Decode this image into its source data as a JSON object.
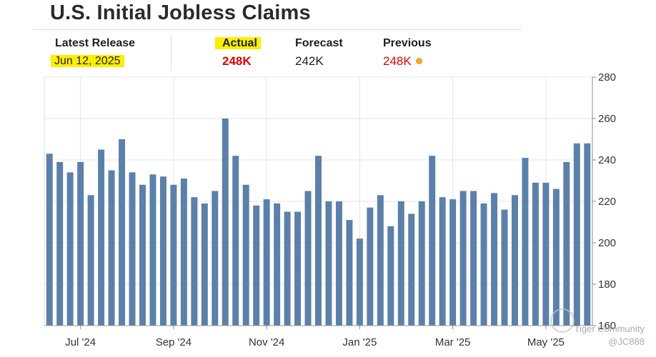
{
  "header": {
    "title": "U.S. Initial Jobless Claims",
    "latest_release_label": "Latest Release",
    "latest_release_date": "Jun 12, 2025",
    "actual_label": "Actual",
    "actual_value": "248K",
    "forecast_label": "Forecast",
    "forecast_value": "242K",
    "previous_label": "Previous",
    "previous_value": "248K"
  },
  "colors": {
    "bar": "#5b80aa",
    "actual": "#e00000",
    "highlight": "#ffee00",
    "dot": "#f5a623"
  },
  "watermark": {
    "line1": "Tiger Community",
    "line2": "@JC888"
  },
  "chart_data": {
    "type": "bar",
    "title": "U.S. Initial Jobless Claims",
    "xlabel": "",
    "ylabel": "",
    "ylim": [
      160,
      280
    ],
    "yticks": [
      160,
      180,
      200,
      220,
      240,
      260,
      280
    ],
    "y_axis_side": "right",
    "grid": true,
    "x_tick_labels": [
      {
        "label": "Jul '24",
        "index": 3
      },
      {
        "label": "Sep '24",
        "index": 12
      },
      {
        "label": "Nov '24",
        "index": 21
      },
      {
        "label": "Jan '25",
        "index": 30
      },
      {
        "label": "Mar '25",
        "index": 39
      },
      {
        "label": "May '25",
        "index": 48
      }
    ],
    "values": [
      243,
      239,
      234,
      239,
      223,
      245,
      235,
      250,
      234,
      228,
      233,
      232,
      228,
      231,
      222,
      219,
      225,
      260,
      242,
      228,
      218,
      221,
      219,
      215,
      215,
      225,
      242,
      220,
      220,
      211,
      202,
      217,
      223,
      208,
      220,
      214,
      220,
      242,
      222,
      221,
      225,
      225,
      219,
      224,
      216,
      223,
      241,
      229,
      229,
      226,
      239,
      248,
      248
    ]
  }
}
